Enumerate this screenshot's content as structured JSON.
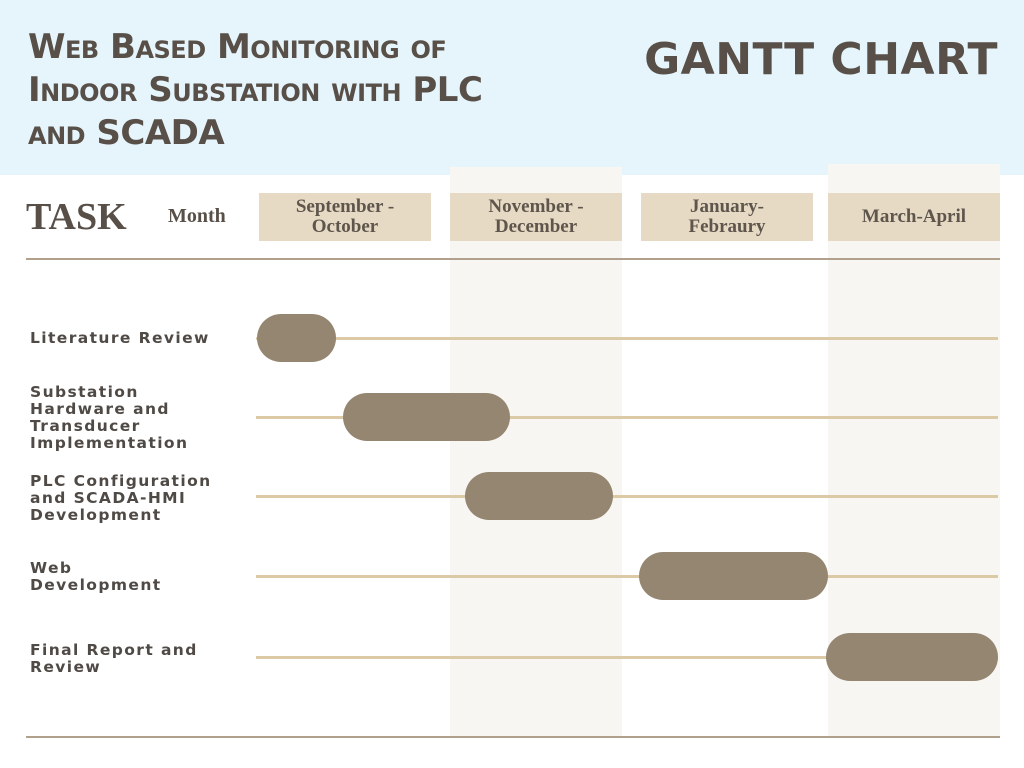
{
  "header": {
    "project_title": "Web Based Monitoring of Indoor Substation with PLC and SCADA",
    "chart_title": "GANTT CHART"
  },
  "colors": {
    "banner": "#e6f5fc",
    "period_header": "#e7dac4",
    "bar": "#948670",
    "track": "#dcc9a5",
    "column_shade": "#f8f6f3",
    "text": "#585048"
  },
  "chart_data": {
    "type": "gantt",
    "task_column_label": "TASK",
    "period_column_label": "Month",
    "periods": [
      "September - October",
      "November - December",
      "January- Febraury",
      "March-April"
    ],
    "tasks": [
      {
        "name": "Literature Review",
        "start": 0,
        "end": 0.45
      },
      {
        "name": "Substation Hardware and Transducer Implementation",
        "start": 0.5,
        "end": 1.35
      },
      {
        "name": "PLC Configuration and SCADA-HMI Development",
        "start": 1.1,
        "end": 1.95
      },
      {
        "name": "Web Development",
        "start": 2.0,
        "end": 3.0
      },
      {
        "name": "Final Report and Review",
        "start": 3.0,
        "end": 4.0
      }
    ]
  }
}
